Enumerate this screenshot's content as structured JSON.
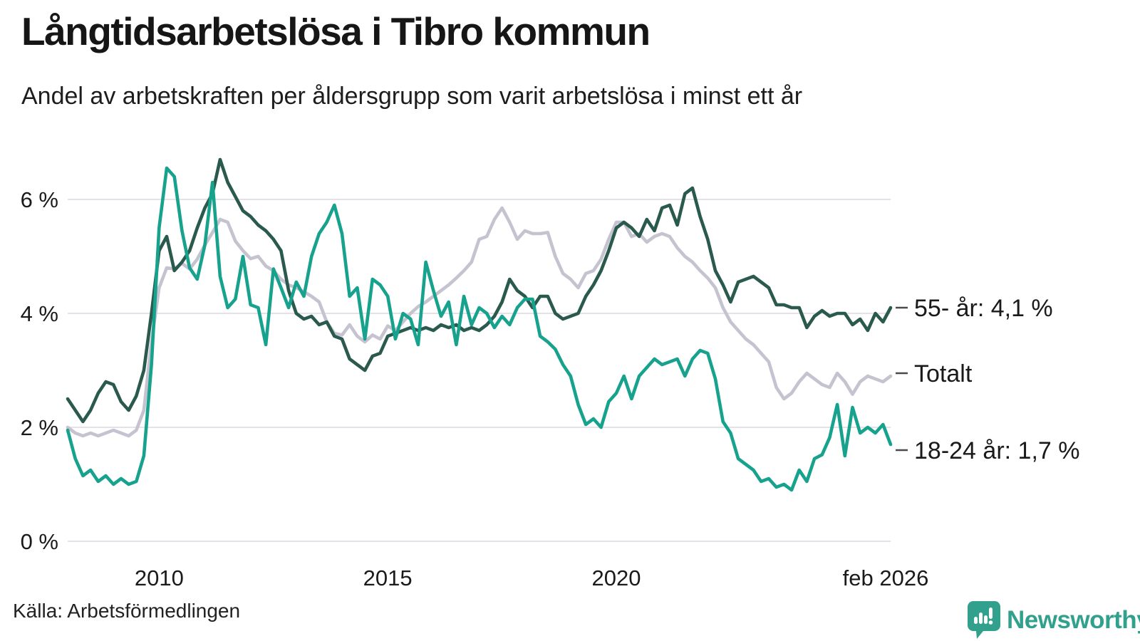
{
  "header": {
    "title": "Långtidsarbetslösa i Tibro kommun",
    "subtitle": "Andel av arbetskraften per åldersgrupp som varit arbetslösa i minst ett år"
  },
  "footer": {
    "source": "Källa: Arbetsförmedlingen",
    "brand": "Newsworthy",
    "brand_icon": "newsworthy-speech-bubble-bar-chart-icon",
    "brand_color": "#31a18e"
  },
  "colors": {
    "background": "#ffffff",
    "grid": "#e4e2e8",
    "text": "#1a1a1a",
    "dash": "#4a4a4a",
    "series_55": "#2a594d",
    "series_total": "#c6c3d0",
    "series_1824": "#17a28e"
  },
  "chart_data": {
    "type": "line",
    "title": "Långtidsarbetslösa i Tibro kommun",
    "subtitle": "Andel av arbetskraften per åldersgrupp som varit arbetslösa i minst ett år",
    "unit": "%",
    "grid": "horizontal",
    "legend_position": "end-labels-right",
    "x_start_year": 2008.0,
    "x_step_years": 0.16667,
    "x_end": "feb 2026",
    "ylim": [
      0,
      7
    ],
    "yticks": [
      {
        "value": 0,
        "label": "0 %"
      },
      {
        "value": 2,
        "label": "2 %"
      },
      {
        "value": 4,
        "label": "4 %"
      },
      {
        "value": 6,
        "label": "6 %"
      }
    ],
    "xticks": [
      {
        "year": 2010,
        "label": "2010"
      },
      {
        "year": 2015,
        "label": "2015"
      },
      {
        "year": 2020,
        "label": "2020"
      },
      {
        "year": 2026.08,
        "label": "feb 2026"
      }
    ],
    "series": [
      {
        "name": "55- år",
        "end_label": "55- år: 4,1 %",
        "last_value": 4.1,
        "color": "#2a594d",
        "values": [
          2.5,
          2.3,
          2.1,
          2.3,
          2.6,
          2.8,
          2.75,
          2.45,
          2.3,
          2.55,
          3.0,
          4.0,
          5.1,
          5.35,
          4.75,
          4.9,
          5.1,
          5.5,
          5.85,
          6.1,
          6.7,
          6.3,
          6.05,
          5.8,
          5.7,
          5.55,
          5.45,
          5.3,
          5.1,
          4.4,
          4.0,
          3.9,
          3.95,
          3.8,
          3.85,
          3.6,
          3.55,
          3.2,
          3.1,
          3.0,
          3.25,
          3.3,
          3.6,
          3.65,
          3.7,
          3.75,
          3.7,
          3.75,
          3.7,
          3.8,
          3.75,
          3.8,
          3.7,
          3.75,
          3.7,
          3.8,
          3.95,
          4.2,
          4.6,
          4.4,
          4.3,
          4.1,
          4.3,
          4.3,
          4.0,
          3.9,
          3.95,
          4.0,
          4.3,
          4.5,
          4.75,
          5.1,
          5.5,
          5.6,
          5.5,
          5.35,
          5.65,
          5.45,
          5.85,
          5.9,
          5.55,
          6.1,
          6.2,
          5.7,
          5.3,
          4.75,
          4.5,
          4.2,
          4.55,
          4.6,
          4.65,
          4.55,
          4.45,
          4.15,
          4.15,
          4.1,
          4.1,
          3.75,
          3.95,
          4.05,
          3.95,
          4.0,
          4.0,
          3.8,
          3.9,
          3.7,
          4.0,
          3.85,
          4.1
        ]
      },
      {
        "name": "Totalt",
        "end_label": "Totalt",
        "last_value": 2.9,
        "color": "#c6c3d0",
        "values": [
          2.0,
          1.9,
          1.85,
          1.9,
          1.85,
          1.9,
          1.95,
          1.9,
          1.85,
          1.95,
          2.3,
          3.5,
          4.45,
          4.8,
          4.78,
          4.88,
          4.78,
          4.95,
          5.2,
          5.42,
          5.65,
          5.6,
          5.27,
          5.1,
          4.96,
          5.0,
          4.83,
          4.75,
          4.6,
          4.5,
          4.45,
          4.38,
          4.3,
          4.2,
          3.85,
          3.65,
          3.62,
          3.8,
          3.6,
          3.5,
          3.62,
          3.55,
          3.78,
          3.7,
          3.85,
          4.0,
          4.12,
          4.2,
          4.3,
          4.4,
          4.5,
          4.62,
          4.75,
          4.9,
          5.3,
          5.35,
          5.65,
          5.85,
          5.6,
          5.3,
          5.45,
          5.4,
          5.4,
          5.42,
          5.0,
          4.7,
          4.6,
          4.45,
          4.7,
          4.75,
          4.95,
          5.3,
          5.6,
          5.6,
          5.35,
          5.4,
          5.25,
          5.35,
          5.4,
          5.35,
          5.15,
          5.0,
          4.9,
          4.75,
          4.62,
          4.45,
          4.1,
          3.85,
          3.7,
          3.55,
          3.45,
          3.3,
          3.15,
          2.7,
          2.5,
          2.6,
          2.8,
          2.95,
          2.85,
          2.75,
          2.7,
          2.95,
          2.8,
          2.58,
          2.8,
          2.9,
          2.85,
          2.8,
          2.9
        ]
      },
      {
        "name": "18-24 år",
        "end_label": "18-24 år: 1,7 %",
        "last_value": 1.7,
        "color": "#17a28e",
        "values": [
          1.95,
          1.45,
          1.15,
          1.25,
          1.05,
          1.15,
          1.0,
          1.1,
          1.0,
          1.05,
          1.5,
          3.1,
          5.5,
          6.55,
          6.4,
          5.45,
          4.8,
          4.6,
          5.2,
          6.3,
          4.65,
          4.1,
          4.25,
          5.0,
          4.15,
          4.1,
          3.45,
          4.78,
          4.45,
          4.1,
          4.55,
          4.3,
          5.0,
          5.4,
          5.6,
          5.9,
          5.4,
          4.3,
          4.45,
          3.55,
          4.6,
          4.5,
          4.3,
          3.55,
          4.0,
          3.9,
          3.45,
          4.9,
          4.4,
          3.95,
          4.2,
          3.45,
          4.3,
          3.8,
          4.1,
          4.0,
          3.75,
          3.95,
          3.8,
          4.1,
          4.25,
          4.25,
          3.6,
          3.5,
          3.37,
          3.1,
          2.9,
          2.4,
          2.05,
          2.15,
          2.0,
          2.45,
          2.6,
          2.9,
          2.5,
          2.9,
          3.05,
          3.2,
          3.1,
          3.15,
          3.2,
          2.9,
          3.2,
          3.35,
          3.3,
          2.85,
          2.1,
          1.9,
          1.45,
          1.35,
          1.25,
          1.05,
          1.1,
          0.95,
          1.0,
          0.9,
          1.25,
          1.05,
          1.45,
          1.52,
          1.82,
          2.4,
          1.5,
          2.35,
          1.9,
          2.0,
          1.9,
          2.05,
          1.7
        ]
      }
    ]
  }
}
